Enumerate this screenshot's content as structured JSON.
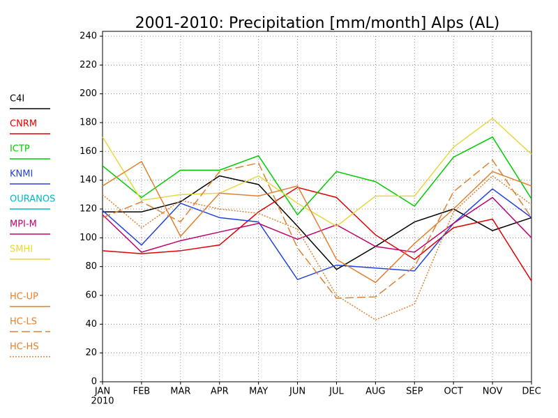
{
  "chart_data": {
    "type": "line",
    "title": "2001-2010: Precipitation [mm/month] Alps (AL)",
    "categories": [
      "JAN",
      "FEB",
      "MAR",
      "APR",
      "MAY",
      "JUN",
      "JUL",
      "AUG",
      "SEP",
      "OCT",
      "NOV",
      "DEC"
    ],
    "year_label": "2010",
    "ylim": [
      0,
      240
    ],
    "yticks": [
      0,
      20,
      40,
      60,
      80,
      100,
      120,
      140,
      160,
      180,
      200,
      220,
      240
    ],
    "grid": true,
    "series": [
      {
        "name": "C4I",
        "color": "#000000",
        "dash": "solid",
        "values": [
          118,
          118,
          125,
          143,
          137,
          108,
          78,
          94,
          111,
          120,
          105,
          114
        ]
      },
      {
        "name": "CNRM",
        "color": "#e00000",
        "dash": "solid",
        "values": [
          91,
          89,
          91,
          95,
          118,
          135,
          128,
          102,
          85,
          107,
          113,
          70
        ]
      },
      {
        "name": "ICTP",
        "color": "#00cc00",
        "dash": "solid",
        "values": [
          150,
          128,
          147,
          147,
          157,
          116,
          146,
          139,
          122,
          156,
          170,
          127
        ]
      },
      {
        "name": "KNMI",
        "color": "#2040e0",
        "dash": "solid",
        "values": [
          119,
          95,
          124,
          114,
          111,
          71,
          81,
          79,
          77,
          110,
          134,
          114
        ]
      },
      {
        "name": "OURANOS",
        "color": "#00b8c0",
        "dash": "solid",
        "values": [
          null,
          null,
          null,
          null,
          null,
          null,
          null,
          null,
          null,
          null,
          null,
          null
        ]
      },
      {
        "name": "MPI-M",
        "color": "#c00070",
        "dash": "solid",
        "values": [
          116,
          90,
          98,
          104,
          110,
          99,
          109,
          94,
          90,
          110,
          128,
          100
        ]
      },
      {
        "name": "SMHI",
        "color": "#e6d840",
        "dash": "solid",
        "values": [
          170,
          126,
          130,
          131,
          143,
          124,
          108,
          129,
          129,
          163,
          183,
          158
        ]
      },
      {
        "name": "HC-UP",
        "color": "#e08030",
        "dash": "solid",
        "values": [
          136,
          153,
          101,
          131,
          129,
          136,
          85,
          69,
          96,
          120,
          146,
          136
        ]
      },
      {
        "name": "HC-LS",
        "color": "#e08030",
        "dash": "dashed",
        "values": [
          114,
          125,
          111,
          146,
          152,
          93,
          58,
          59,
          80,
          132,
          154,
          114
        ]
      },
      {
        "name": "HC-HS",
        "color": "#e08030",
        "dash": "dotted",
        "values": [
          130,
          107,
          126,
          120,
          117,
          106,
          60,
          43,
          54,
          118,
          143,
          123
        ]
      }
    ]
  }
}
